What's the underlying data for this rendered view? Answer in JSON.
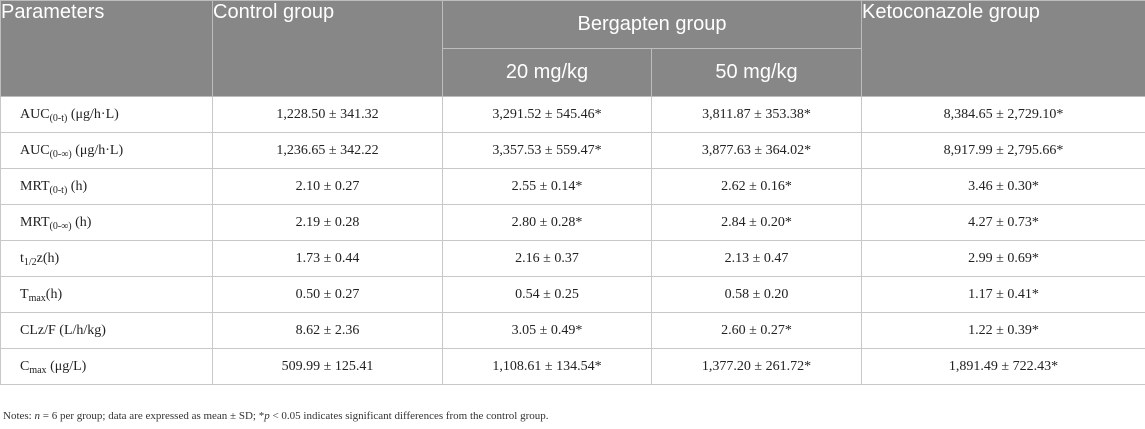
{
  "header": {
    "parameters": "Parameters",
    "control": "Control group",
    "bergapten": "Bergapten group",
    "ketoconazole": "Ketoconazole group",
    "dose_20": "20 mg/kg",
    "dose_50": "50 mg/kg"
  },
  "rows": [
    {
      "param_main": "AUC",
      "param_sub": "(0-t)",
      "param_tail": " (μg/h·L)",
      "control": "1,228.50 ± 341.32",
      "b20": "3,291.52 ± 545.46*",
      "b50": "3,811.87 ± 353.38*",
      "keto": "8,384.65 ± 2,729.10*"
    },
    {
      "param_main": "AUC",
      "param_sub": "(0-∞)",
      "param_tail": " (μg/h·L)",
      "control": "1,236.65 ± 342.22",
      "b20": "3,357.53 ± 559.47*",
      "b50": "3,877.63 ± 364.02*",
      "keto": "8,917.99 ± 2,795.66*"
    },
    {
      "param_main": "MRT",
      "param_sub": "(0-t)",
      "param_tail": " (h)",
      "control": "2.10 ± 0.27",
      "b20": "2.55 ± 0.14*",
      "b50": "2.62 ± 0.16*",
      "keto": "3.46 ± 0.30*"
    },
    {
      "param_main": "MRT",
      "param_sub": "(0-∞)",
      "param_tail": " (h)",
      "control": "2.19 ± 0.28",
      "b20": "2.80 ± 0.28*",
      "b50": "2.84 ± 0.20*",
      "keto": "4.27 ± 0.73*"
    },
    {
      "param_main": "t",
      "param_sub": "1/2",
      "param_tail": "z(h)",
      "control": "1.73 ± 0.44",
      "b20": "2.16 ± 0.37",
      "b50": "2.13 ± 0.47",
      "keto": "2.99 ± 0.69*"
    },
    {
      "param_main": "T",
      "param_sub": "max",
      "param_tail": "(h)",
      "control": "0.50 ± 0.27",
      "b20": "0.54 ± 0.25",
      "b50": "0.58 ± 0.20",
      "keto": "1.17 ± 0.41*"
    },
    {
      "param_main": "CLz/F (L/h/kg)",
      "param_sub": "",
      "param_tail": "",
      "control": "8.62 ± 2.36",
      "b20": "3.05 ± 0.49*",
      "b50": "2.60 ± 0.27*",
      "keto": "1.22 ± 0.39*"
    },
    {
      "param_main": "C",
      "param_sub": "max",
      "param_tail": " (μg/L)",
      "control": "509.99 ± 125.41",
      "b20": "1,108.61 ± 134.54*",
      "b50": "1,377.20 ± 261.72*",
      "keto": "1,891.49 ± 722.43*"
    }
  ],
  "notes": {
    "lead": "Notes: ",
    "n_var": "n",
    "mid": " = 6 per group; data are expressed as mean ± SD; *",
    "p_var": "p",
    "tail": " < 0.05 indicates significant differences from the control group."
  }
}
